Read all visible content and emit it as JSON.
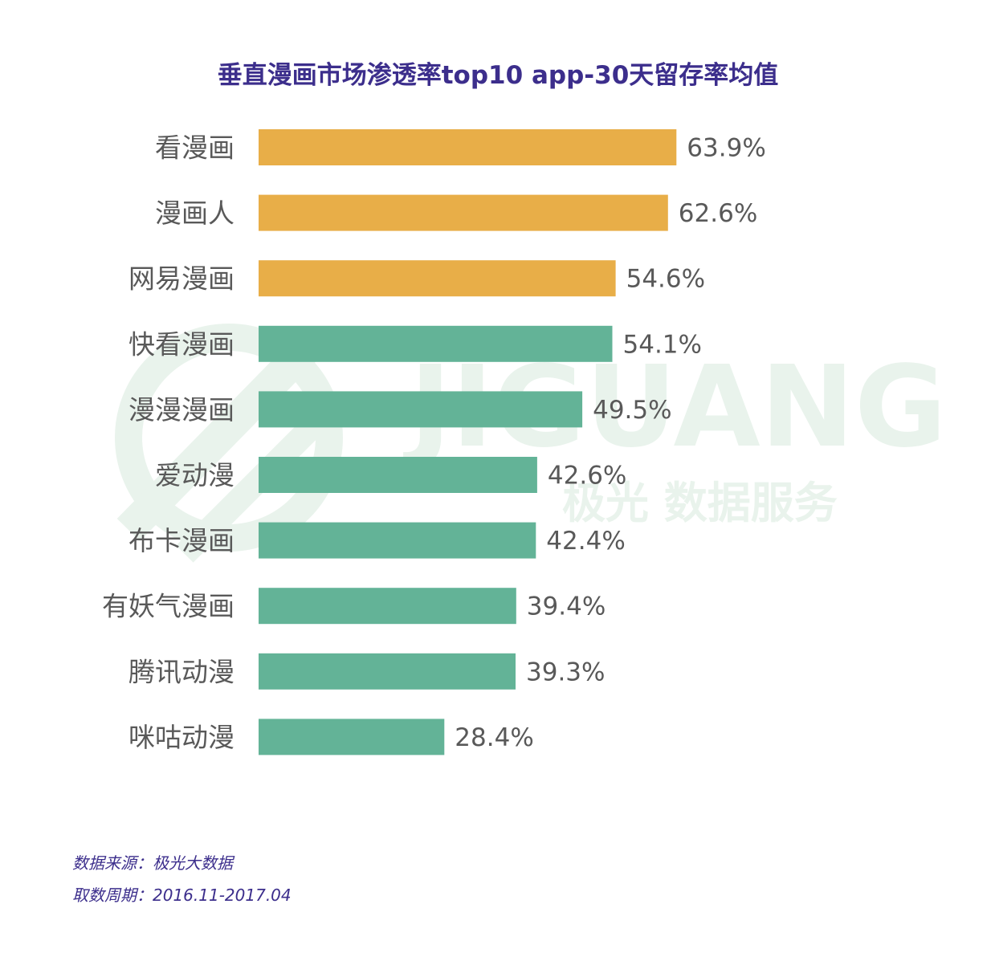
{
  "chart_data": {
    "type": "bar",
    "orientation": "horizontal",
    "title": "垂直漫画市场渗透率top10 app-30天留存率均值",
    "categories": [
      "看漫画",
      "漫画人",
      "网易漫画",
      "快看漫画",
      "漫漫漫画",
      "爱动漫",
      "布卡漫画",
      "有妖气漫画",
      "腾讯动漫",
      "咪咕动漫"
    ],
    "values": [
      63.9,
      62.6,
      54.6,
      54.1,
      49.5,
      42.6,
      42.4,
      39.4,
      39.3,
      28.4
    ],
    "value_labels": [
      "63.9%",
      "62.6%",
      "54.6%",
      "54.1%",
      "49.5%",
      "42.6%",
      "42.4%",
      "39.4%",
      "39.3%",
      "28.4%"
    ],
    "highlight_count": 3,
    "colors": {
      "highlight": "#e8ae48",
      "normal": "#63b397"
    },
    "xlim": [
      0,
      100
    ],
    "grid": false,
    "legend": "none"
  },
  "watermark": {
    "brand": "JIGUANG",
    "subtitle": "极光 数据服务"
  },
  "footer": {
    "source": "数据来源：极光大数据",
    "period": "取数周期：2016.11-2017.04"
  }
}
